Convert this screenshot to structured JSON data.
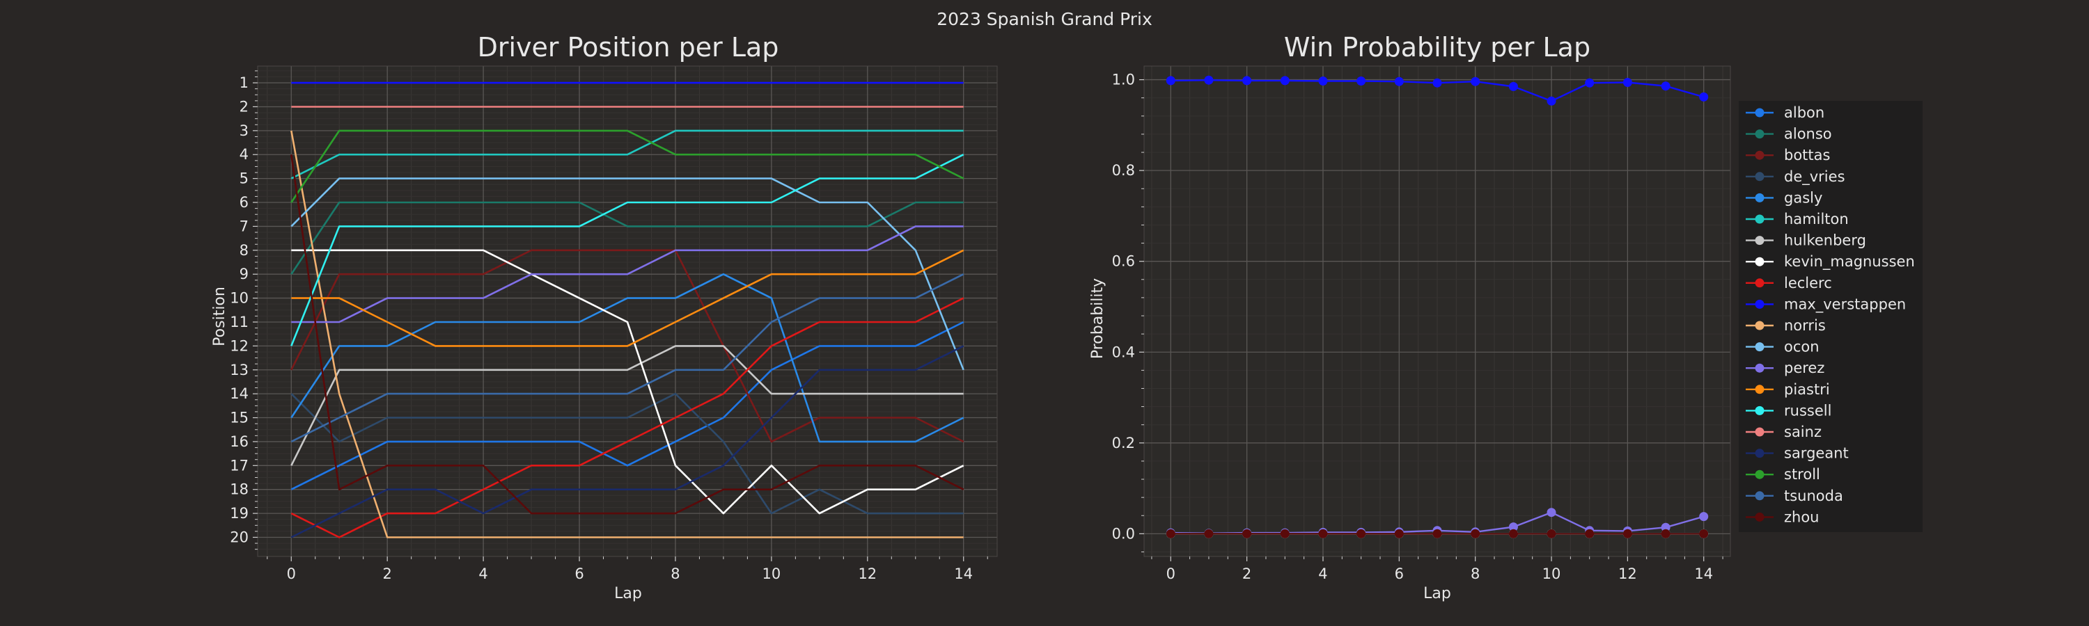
{
  "figure_title": "2023 Spanish Grand Prix",
  "chart_data": [
    {
      "type": "line",
      "title": "Driver Position per Lap",
      "xlabel": "Lap",
      "ylabel": "Position",
      "x": [
        0,
        1,
        2,
        3,
        4,
        5,
        6,
        7,
        8,
        9,
        10,
        11,
        12,
        13,
        14
      ],
      "xlim": [
        -0.7,
        14.7
      ],
      "ylim": [
        20.8,
        0.3
      ],
      "y_inverted": true,
      "xticks": [
        0,
        2,
        4,
        6,
        8,
        10,
        12,
        14
      ],
      "yticks": [
        1,
        2,
        3,
        4,
        5,
        6,
        7,
        8,
        9,
        10,
        11,
        12,
        13,
        14,
        15,
        16,
        17,
        18,
        19,
        20
      ],
      "grid": true,
      "series": [
        {
          "name": "albon",
          "color": "#1f77e8",
          "values": [
            18,
            17,
            16,
            16,
            16,
            16,
            16,
            17,
            16,
            15,
            13,
            12,
            12,
            12,
            11
          ]
        },
        {
          "name": "alonso",
          "color": "#1a7a6a",
          "values": [
            9,
            6,
            6,
            6,
            6,
            6,
            6,
            7,
            7,
            7,
            7,
            7,
            7,
            6,
            6
          ]
        },
        {
          "name": "bottas",
          "color": "#7a1a1a",
          "values": [
            13,
            9,
            9,
            9,
            9,
            8,
            8,
            8,
            8,
            12,
            16,
            15,
            15,
            15,
            16
          ]
        },
        {
          "name": "de_vries",
          "color": "#2e4a6a",
          "values": [
            14,
            16,
            15,
            15,
            15,
            15,
            15,
            15,
            14,
            16,
            19,
            18,
            19,
            19,
            19
          ]
        },
        {
          "name": "gasly",
          "color": "#2a8ae8",
          "values": [
            15,
            12,
            12,
            11,
            11,
            11,
            11,
            10,
            10,
            9,
            10,
            16,
            16,
            16,
            15
          ]
        },
        {
          "name": "hamilton",
          "color": "#20c8c0",
          "values": [
            5,
            4,
            4,
            4,
            4,
            4,
            4,
            4,
            3,
            3,
            3,
            3,
            3,
            3,
            3
          ]
        },
        {
          "name": "hulkenberg",
          "color": "#c8c8c8",
          "values": [
            17,
            13,
            13,
            13,
            13,
            13,
            13,
            13,
            12,
            12,
            14,
            14,
            14,
            14,
            14
          ]
        },
        {
          "name": "kevin_magnussen",
          "color": "#ffffff",
          "values": [
            8,
            8,
            8,
            8,
            8,
            9,
            10,
            11,
            17,
            19,
            17,
            19,
            18,
            18,
            17
          ]
        },
        {
          "name": "leclerc",
          "color": "#e01818",
          "values": [
            19,
            20,
            19,
            19,
            18,
            17,
            17,
            16,
            15,
            14,
            12,
            11,
            11,
            11,
            10
          ]
        },
        {
          "name": "max_verstappen",
          "color": "#1010ff",
          "values": [
            1,
            1,
            1,
            1,
            1,
            1,
            1,
            1,
            1,
            1,
            1,
            1,
            1,
            1,
            1
          ]
        },
        {
          "name": "norris",
          "color": "#f0b070",
          "values": [
            3,
            14,
            20,
            20,
            20,
            20,
            20,
            20,
            20,
            20,
            20,
            20,
            20,
            20,
            20
          ]
        },
        {
          "name": "ocon",
          "color": "#78c0f0",
          "values": [
            7,
            5,
            5,
            5,
            5,
            5,
            5,
            5,
            5,
            5,
            5,
            6,
            6,
            8,
            13
          ]
        },
        {
          "name": "perez",
          "color": "#8070e8",
          "values": [
            11,
            11,
            10,
            10,
            10,
            9,
            9,
            9,
            8,
            8,
            8,
            8,
            8,
            7,
            7
          ]
        },
        {
          "name": "piastri",
          "color": "#ff8c10",
          "values": [
            10,
            10,
            11,
            12,
            12,
            12,
            12,
            12,
            11,
            10,
            9,
            9,
            9,
            9,
            8
          ]
        },
        {
          "name": "russell",
          "color": "#30f0f0",
          "values": [
            12,
            7,
            7,
            7,
            7,
            7,
            7,
            6,
            6,
            6,
            6,
            5,
            5,
            5,
            4
          ]
        },
        {
          "name": "sainz",
          "color": "#f08080",
          "values": [
            2,
            2,
            2,
            2,
            2,
            2,
            2,
            2,
            2,
            2,
            2,
            2,
            2,
            2,
            2
          ]
        },
        {
          "name": "sargeant",
          "color": "#1a2a6a",
          "values": [
            20,
            19,
            18,
            18,
            19,
            18,
            18,
            18,
            18,
            17,
            15,
            13,
            13,
            13,
            12
          ]
        },
        {
          "name": "stroll",
          "color": "#2ca02c",
          "values": [
            6,
            3,
            3,
            3,
            3,
            3,
            3,
            3,
            4,
            4,
            4,
            4,
            4,
            4,
            5
          ]
        },
        {
          "name": "tsunoda",
          "color": "#3a6aa8",
          "values": [
            16,
            15,
            14,
            14,
            14,
            14,
            14,
            14,
            13,
            13,
            11,
            10,
            10,
            10,
            9
          ]
        },
        {
          "name": "zhou",
          "color": "#5a0a0a",
          "values": [
            4,
            18,
            17,
            17,
            17,
            19,
            19,
            19,
            19,
            18,
            18,
            17,
            17,
            17,
            18
          ]
        }
      ]
    },
    {
      "type": "line",
      "title": "Win Probability per Lap",
      "xlabel": "Lap",
      "ylabel": "Probability",
      "x": [
        0,
        1,
        2,
        3,
        4,
        5,
        6,
        7,
        8,
        9,
        10,
        11,
        12,
        13,
        14
      ],
      "xlim": [
        -0.7,
        14.7
      ],
      "ylim": [
        -0.05,
        1.03
      ],
      "xticks": [
        0,
        2,
        4,
        6,
        8,
        10,
        12,
        14
      ],
      "yticks": [
        0.0,
        0.2,
        0.4,
        0.6,
        0.8,
        1.0
      ],
      "ytick_labels": [
        "0.0",
        "0.2",
        "0.4",
        "0.6",
        "0.8",
        "1.0"
      ],
      "grid": true,
      "legend_position": "right",
      "series": [
        {
          "name": "albon",
          "color": "#1f77e8",
          "values": [
            0,
            0,
            0,
            0,
            0,
            0,
            0,
            0,
            0,
            0,
            0,
            0,
            0,
            0,
            0
          ]
        },
        {
          "name": "alonso",
          "color": "#1a7a6a",
          "values": [
            0,
            0,
            0,
            0,
            0,
            0,
            0,
            0,
            0,
            0,
            0,
            0,
            0,
            0,
            0
          ]
        },
        {
          "name": "bottas",
          "color": "#7a1a1a",
          "values": [
            0,
            0,
            0,
            0,
            0,
            0,
            0,
            0,
            0,
            0,
            0,
            0,
            0,
            0,
            0
          ]
        },
        {
          "name": "de_vries",
          "color": "#2e4a6a",
          "values": [
            0,
            0,
            0,
            0,
            0,
            0,
            0,
            0,
            0,
            0,
            0,
            0,
            0,
            0,
            0
          ]
        },
        {
          "name": "gasly",
          "color": "#2a8ae8",
          "values": [
            0,
            0,
            0,
            0,
            0,
            0,
            0,
            0,
            0,
            0,
            0,
            0,
            0,
            0,
            0
          ]
        },
        {
          "name": "hamilton",
          "color": "#20c8c0",
          "values": [
            0,
            0,
            0,
            0,
            0,
            0,
            0,
            0,
            0,
            0,
            0,
            0,
            0,
            0,
            0
          ]
        },
        {
          "name": "hulkenberg",
          "color": "#c8c8c8",
          "values": [
            0,
            0,
            0,
            0,
            0,
            0,
            0,
            0,
            0,
            0,
            0,
            0,
            0,
            0,
            0
          ]
        },
        {
          "name": "kevin_magnussen",
          "color": "#ffffff",
          "values": [
            0,
            0,
            0,
            0,
            0,
            0,
            0,
            0,
            0,
            0,
            0,
            0,
            0,
            0,
            0
          ]
        },
        {
          "name": "leclerc",
          "color": "#e01818",
          "values": [
            0,
            0,
            0,
            0,
            0,
            0,
            0,
            0,
            0,
            0,
            0,
            0,
            0,
            0,
            0
          ]
        },
        {
          "name": "max_verstappen",
          "color": "#1010ff",
          "values": [
            0.998,
            0.999,
            0.998,
            0.998,
            0.997,
            0.997,
            0.996,
            0.993,
            0.996,
            0.985,
            0.953,
            0.993,
            0.994,
            0.986,
            0.962
          ]
        },
        {
          "name": "norris",
          "color": "#f0b070",
          "values": [
            0,
            0,
            0,
            0,
            0,
            0,
            0,
            0,
            0,
            0,
            0,
            0,
            0,
            0,
            0
          ]
        },
        {
          "name": "ocon",
          "color": "#78c0f0",
          "values": [
            0,
            0,
            0,
            0,
            0,
            0,
            0,
            0,
            0,
            0,
            0,
            0,
            0,
            0,
            0
          ]
        },
        {
          "name": "perez",
          "color": "#8070e8",
          "values": [
            0.002,
            0.001,
            0.002,
            0.002,
            0.003,
            0.003,
            0.004,
            0.007,
            0.004,
            0.015,
            0.047,
            0.007,
            0.006,
            0.014,
            0.038
          ]
        },
        {
          "name": "piastri",
          "color": "#ff8c10",
          "values": [
            0,
            0,
            0,
            0,
            0,
            0,
            0,
            0,
            0,
            0,
            0,
            0,
            0,
            0,
            0
          ]
        },
        {
          "name": "russell",
          "color": "#30f0f0",
          "values": [
            0,
            0,
            0,
            0,
            0,
            0,
            0,
            0,
            0,
            0,
            0,
            0,
            0,
            0,
            0
          ]
        },
        {
          "name": "sainz",
          "color": "#f08080",
          "values": [
            0,
            0,
            0,
            0,
            0,
            0,
            0,
            0,
            0,
            0,
            0,
            0,
            0,
            0,
            0
          ]
        },
        {
          "name": "sargeant",
          "color": "#1a2a6a",
          "values": [
            0,
            0,
            0,
            0,
            0,
            0,
            0,
            0,
            0,
            0,
            0,
            0,
            0,
            0,
            0
          ]
        },
        {
          "name": "stroll",
          "color": "#2ca02c",
          "values": [
            0,
            0,
            0,
            0,
            0,
            0,
            0,
            0,
            0,
            0,
            0,
            0,
            0,
            0,
            0
          ]
        },
        {
          "name": "tsunoda",
          "color": "#3a6aa8",
          "values": [
            0,
            0,
            0,
            0,
            0,
            0,
            0,
            0,
            0,
            0,
            0,
            0,
            0,
            0,
            0
          ]
        },
        {
          "name": "zhou",
          "color": "#5a0a0a",
          "values": [
            0,
            0,
            0,
            0,
            0,
            0,
            0,
            0,
            0,
            0,
            0,
            0,
            0,
            0,
            0
          ]
        }
      ]
    }
  ]
}
